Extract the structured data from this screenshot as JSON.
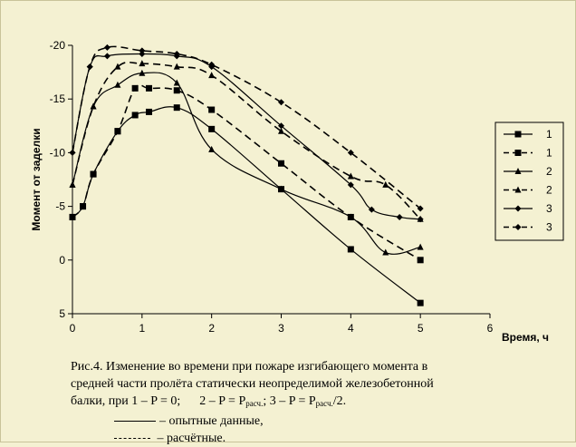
{
  "chart_data": {
    "type": "line",
    "xlabel": "Время, ч",
    "ylabel": "Момент от заделки",
    "xlim": [
      0,
      6
    ],
    "ylim": [
      5,
      -20
    ],
    "y_axis_inverted": true,
    "x_ticks": [
      "0",
      "1",
      "2",
      "3",
      "4",
      "5",
      "6"
    ],
    "y_ticks": [
      "-20",
      "-15",
      "-10",
      "-5",
      "0",
      "5"
    ],
    "grid": false,
    "legend_position": "right",
    "series": [
      {
        "name": "1",
        "style": "solid",
        "marker": "square",
        "x": [
          0,
          0.15,
          0.3,
          0.65,
          0.9,
          1.1,
          1.5,
          2,
          3,
          4,
          5
        ],
        "y": [
          -4,
          -5,
          -8,
          -12,
          -13.5,
          -13.8,
          -14.2,
          -12.2,
          -6.6,
          -1,
          4
        ]
      },
      {
        "name": "1",
        "style": "dashed",
        "marker": "square",
        "x": [
          0,
          0.15,
          0.3,
          0.65,
          0.9,
          1.1,
          1.5,
          2,
          3,
          4,
          5
        ],
        "y": [
          -4,
          -5,
          -8,
          -12,
          -16,
          -16,
          -15.8,
          -14,
          -9,
          -4,
          0
        ]
      },
      {
        "name": "2",
        "style": "solid",
        "marker": "triangle",
        "x": [
          0,
          0.3,
          0.65,
          1,
          1.5,
          2,
          3,
          4,
          4.5,
          5
        ],
        "y": [
          -7,
          -14.3,
          -16.3,
          -17.4,
          -16.5,
          -10.3,
          -6.6,
          -4,
          -0.7,
          -1.2
        ]
      },
      {
        "name": "2",
        "style": "dashed",
        "marker": "triangle",
        "x": [
          0,
          0.3,
          0.65,
          1,
          1.5,
          2,
          3,
          4,
          4.5,
          5
        ],
        "y": [
          -7,
          -14.3,
          -18,
          -18.3,
          -18,
          -17.2,
          -12,
          -7.8,
          -7,
          -3.8
        ]
      },
      {
        "name": "3",
        "style": "solid",
        "marker": "diamond",
        "x": [
          0,
          0.25,
          0.5,
          1,
          1.5,
          2,
          3,
          4,
          4.3,
          4.7,
          5
        ],
        "y": [
          -10,
          -18,
          -19,
          -19.2,
          -19,
          -18,
          -12.5,
          -7,
          -4.7,
          -4,
          -3.8
        ]
      },
      {
        "name": "3",
        "style": "dashed",
        "marker": "diamond",
        "x": [
          0,
          0.25,
          0.5,
          1,
          1.5,
          2,
          3,
          4,
          5
        ],
        "y": [
          -10,
          -18,
          -19.8,
          -19.5,
          -19.2,
          -18.2,
          -14.7,
          -10,
          -4.8
        ]
      }
    ]
  },
  "caption": {
    "line1": "Рис.4. Изменение во времени при пожаре изгибающего момента в",
    "line2": "средней части пролёта статически неопределимой железобетонной",
    "line3_a": "балки, при 1 – P = 0;",
    "line3_b": "2 – P = P",
    "line3_sub1": "расч.",
    "line3_c": "; 3 – P = P",
    "line3_sub2": "расч.",
    "line3_d": "/2.",
    "legend_solid": "– опытные данные,",
    "legend_dashed": "– расчётные."
  }
}
